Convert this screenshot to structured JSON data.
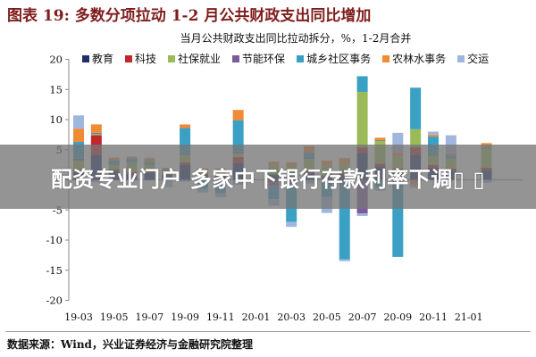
{
  "header": {
    "figure_title": "图表 19: 多数分项拉动 1-2 月公共财政支出同比增加"
  },
  "chart_data": {
    "type": "bar",
    "stacked": true,
    "title": "当月公共财政支出同比拉动拆分，%，1-2月合并",
    "x_labels": [
      "19-03",
      "19-05",
      "19-07",
      "19-09",
      "19-11",
      "20-01",
      "20-03",
      "20-05",
      "20-07",
      "20-09",
      "20-11",
      "21-01"
    ],
    "ylim": [
      -20,
      20
    ],
    "yticks": [
      20,
      15,
      10,
      5,
      0,
      -5,
      -10,
      -15,
      -20
    ],
    "grid": false,
    "legend": "top",
    "series": [
      {
        "name": "教育",
        "color": "#1f2f6e",
        "values": [
          1.2,
          4.2,
          1.5,
          1.0,
          1.2,
          0.8,
          2.5,
          0.8,
          0.6,
          2.8,
          null,
          0.9,
          0.8,
          1.2,
          0.5,
          0.9,
          4.5,
          2.2,
          1.6,
          4.2,
          2.0,
          1.5,
          null,
          1.6
        ]
      },
      {
        "name": "科技",
        "color": "#c0282e",
        "values": [
          0.5,
          3.2,
          0.2,
          0.3,
          0.2,
          0.1,
          0.4,
          0.2,
          0.1,
          1.0,
          null,
          -0.4,
          -0.3,
          0.3,
          0.1,
          0.2,
          0.9,
          0.5,
          0.3,
          1.2,
          0.5,
          0.4,
          null,
          0.4
        ]
      },
      {
        "name": "社保就业",
        "color": "#9bbb59",
        "values": [
          1.5,
          0.2,
          0.8,
          1.6,
          1.0,
          0.6,
          1.2,
          0.5,
          0.8,
          0.6,
          null,
          1.6,
          1.5,
          2.0,
          1.8,
          1.5,
          9.2,
          3.8,
          2.0,
          3.0,
          1.5,
          1.6,
          null,
          3.2
        ]
      },
      {
        "name": "节能环保",
        "color": "#7b5a9e",
        "values": [
          0.3,
          0.1,
          0.1,
          0.1,
          0.1,
          0.0,
          0.2,
          0.1,
          -0.4,
          0.3,
          null,
          -0.6,
          -0.4,
          0.2,
          -0.3,
          -0.6,
          -5.6,
          0.1,
          -0.8,
          0.0,
          0.2,
          0.1,
          null,
          0.1
        ]
      },
      {
        "name": "城乡社区事务",
        "color": "#3aa0c4",
        "values": [
          2.8,
          0.1,
          0.6,
          0.5,
          0.5,
          0.3,
          4.3,
          -1.5,
          -1.8,
          5.2,
          null,
          -2.2,
          -6.3,
          0.8,
          -2.5,
          -12.6,
          2.6,
          -1.2,
          -12.0,
          6.9,
          3.0,
          0.4,
          null,
          0.2
        ]
      },
      {
        "name": "农林水事务",
        "color": "#f08a34",
        "values": [
          2.2,
          1.4,
          0.4,
          0.3,
          0.5,
          0.2,
          0.6,
          0.3,
          0.4,
          1.7,
          null,
          0.5,
          0.6,
          1.1,
          0.8,
          1.0,
          0.0,
          0.4,
          0.6,
          -0.8,
          0.3,
          0.3,
          null,
          0.6
        ]
      },
      {
        "name": "交运",
        "color": "#9fb6dd",
        "values": [
          2.2,
          -0.4,
          0.1,
          0.1,
          0.2,
          -1.2,
          -0.3,
          -0.6,
          -0.7,
          -0.8,
          null,
          -1.1,
          -0.8,
          -0.6,
          -2.7,
          -0.3,
          -0.4,
          -0.6,
          3.3,
          -0.5,
          0.5,
          3.1,
          null,
          -0.5
        ]
      }
    ]
  },
  "overlay": {
    "banner_text": "配资专业门户 多家中下银行存款利率下调▯ ▯"
  },
  "footer": {
    "source": "数据来源：Wind，兴业证券经济与金融研究院整理"
  }
}
